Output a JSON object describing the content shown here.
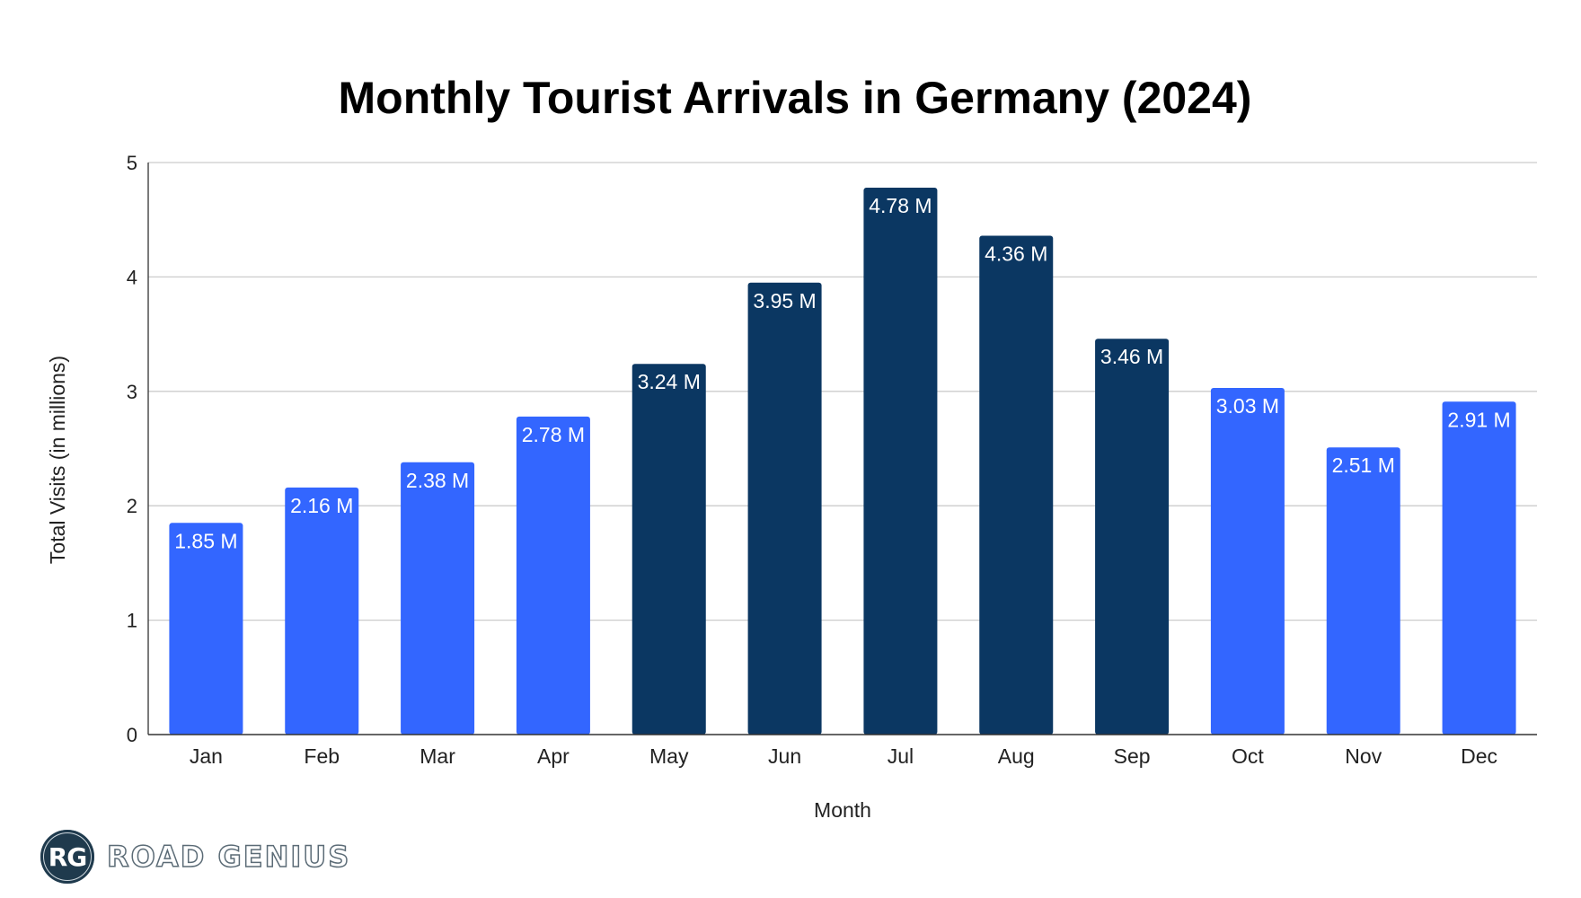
{
  "chart_data": {
    "type": "bar",
    "title": "Monthly Tourist Arrivals in Germany (2024)",
    "xlabel": "Month",
    "ylabel": "Total Visits (in millions)",
    "ylim": [
      0,
      5
    ],
    "yticks": [
      0,
      1,
      2,
      3,
      4,
      5
    ],
    "grid": true,
    "categories": [
      "Jan",
      "Feb",
      "Mar",
      "Apr",
      "May",
      "Jun",
      "Jul",
      "Aug",
      "Sep",
      "Oct",
      "Nov",
      "Dec"
    ],
    "values": [
      1.85,
      2.16,
      2.38,
      2.78,
      3.24,
      3.95,
      4.78,
      4.36,
      3.46,
      3.03,
      2.51,
      2.91
    ],
    "data_labels": [
      "1.85 M",
      "2.16 M",
      "2.38 M",
      "2.78 M",
      "3.24 M",
      "3.95 M",
      "4.78 M",
      "4.36 M",
      "3.46 M",
      "3.03 M",
      "2.51 M",
      "2.91 M"
    ],
    "highlighted": [
      false,
      false,
      false,
      false,
      true,
      true,
      true,
      true,
      true,
      false,
      false,
      false
    ],
    "colors": {
      "regular": "#3366ff",
      "highlight": "#0b3762"
    }
  },
  "logo": {
    "initials": "RG",
    "name": "ROAD GENIUS"
  }
}
